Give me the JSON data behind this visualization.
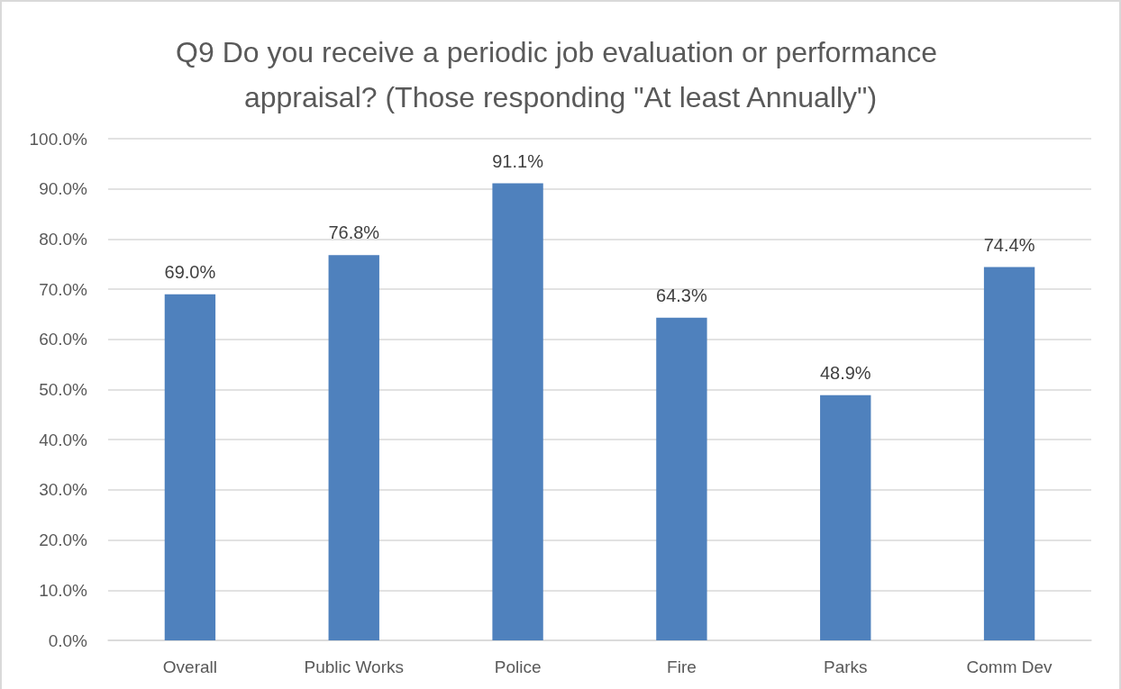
{
  "chart_data": {
    "type": "bar",
    "title": "Q9 Do you receive a periodic job evaluation or performance appraisal? (Those responding \"At least Annually\")",
    "categories": [
      "Overall",
      "Public Works",
      "Police",
      "Fire",
      "Parks",
      "Comm Dev"
    ],
    "values": [
      69.0,
      76.8,
      91.1,
      64.3,
      48.9,
      74.4
    ],
    "color": "#4f81bd",
    "value_labels": [
      "69.0%",
      "76.8%",
      "91.1%",
      "64.3%",
      "48.9%",
      "74.4%"
    ],
    "ylim": [
      0,
      100
    ],
    "yticks": [
      {
        "value": 0,
        "label": "0.0%"
      },
      {
        "value": 10,
        "label": "10.0%"
      },
      {
        "value": 20,
        "label": "20.0%"
      },
      {
        "value": 30,
        "label": "30.0%"
      },
      {
        "value": 40,
        "label": "40.0%"
      },
      {
        "value": 50,
        "label": "50.0%"
      },
      {
        "value": 60,
        "label": "60.0%"
      },
      {
        "value": 70,
        "label": "70.0%"
      },
      {
        "value": 80,
        "label": "80.0%"
      },
      {
        "value": 90,
        "label": "90.0%"
      },
      {
        "value": 100,
        "label": "100.0%"
      }
    ],
    "grid": "y"
  }
}
